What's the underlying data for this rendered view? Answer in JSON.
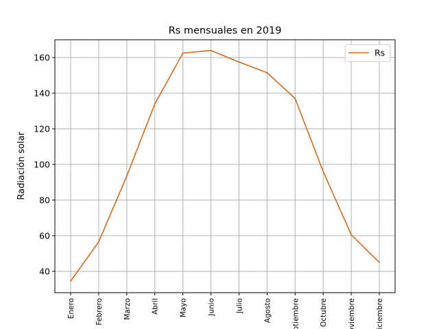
{
  "chart_data": {
    "type": "line",
    "title": "Rs mensuales en 2019",
    "xlabel": "",
    "ylabel": "Radiación solar",
    "categories": [
      "Enero",
      "Febrero",
      "Marzo",
      "Abril",
      "Mayo",
      "Junio",
      "Julio",
      "Agosto",
      "Septiembre",
      "Octubre",
      "Noviembre",
      "Diciembre"
    ],
    "series": [
      {
        "name": "Rs",
        "color": "#d2691e",
        "values": [
          34.5,
          56.5,
          93.5,
          134.0,
          162.5,
          164.0,
          157.5,
          151.5,
          137.0,
          96.0,
          60.5,
          45.0
        ]
      }
    ],
    "yticks": [
      40,
      60,
      80,
      100,
      120,
      140,
      160
    ],
    "ylim": [
      28,
      170
    ],
    "grid": true,
    "legend": "top-right"
  }
}
